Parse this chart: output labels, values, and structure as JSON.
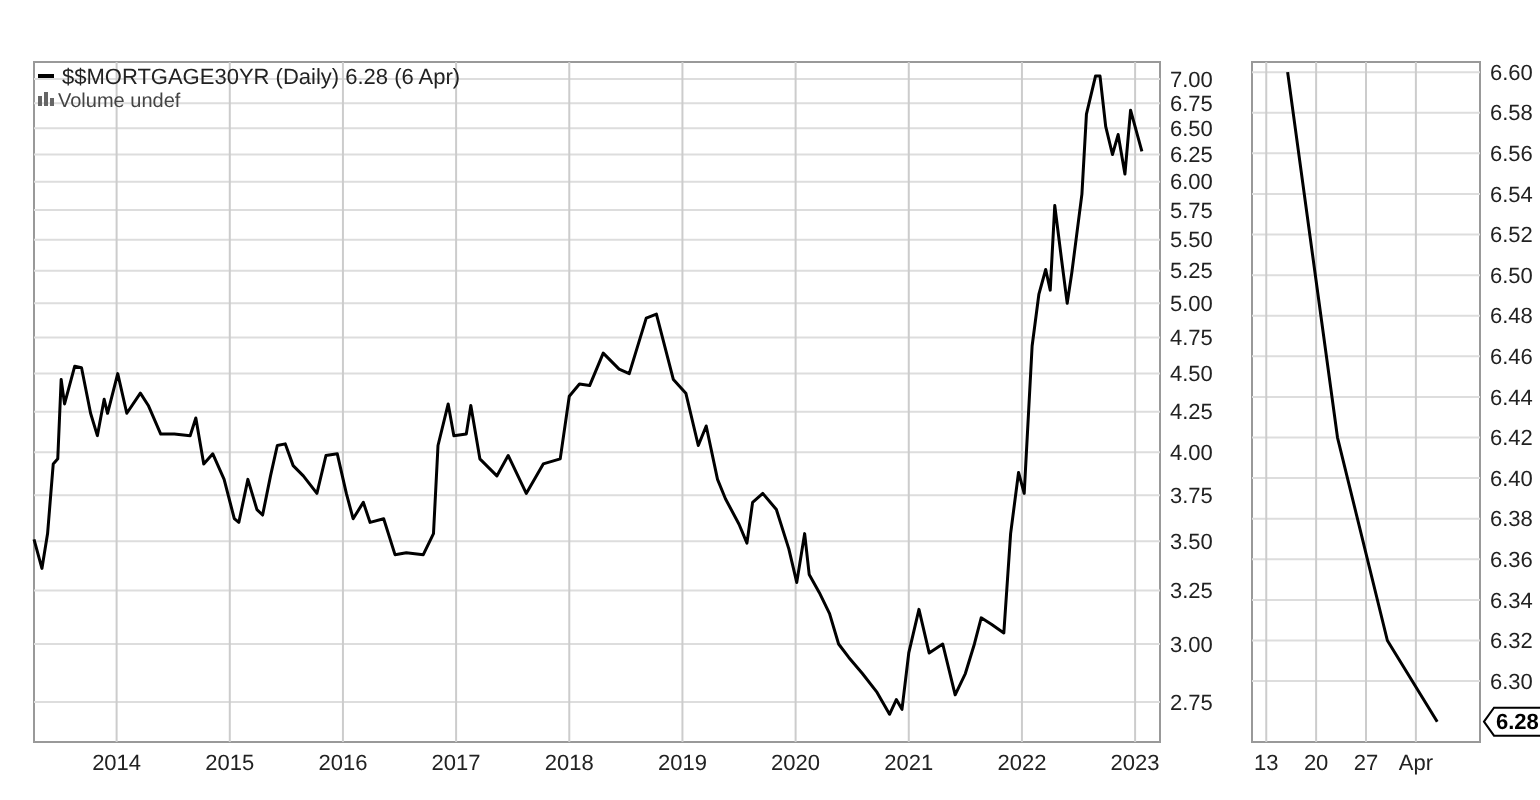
{
  "chart_data": [
    {
      "type": "line",
      "log": true,
      "grid": true,
      "legend": "top left",
      "line_style": "solid",
      "marker": "none",
      "annotations": [
        "Volume undef"
      ],
      "xlim": [
        2013.27,
        2023.22
      ],
      "xticks": [
        2014,
        2015,
        2016,
        2017,
        2018,
        2019,
        2020,
        2021,
        2022,
        2023
      ],
      "ylim": [
        2.59,
        7.18
      ],
      "yticks": [
        {
          "value": 2.75,
          "label": "2.75"
        },
        {
          "value": 3,
          "label": "3.00"
        },
        {
          "value": 3.25,
          "label": "3.25"
        },
        {
          "value": 3.5,
          "label": "3.50"
        },
        {
          "value": 3.75,
          "label": "3.75"
        },
        {
          "value": 4,
          "label": "4.00"
        },
        {
          "value": 4.25,
          "label": "4.25"
        },
        {
          "value": 4.5,
          "label": "4.50"
        },
        {
          "value": 4.75,
          "label": "4.75"
        },
        {
          "value": 5,
          "label": "5.00"
        },
        {
          "value": 5.25,
          "label": "5.25"
        },
        {
          "value": 5.5,
          "label": "5.50"
        },
        {
          "value": 5.75,
          "label": "5.75"
        },
        {
          "value": 6,
          "label": "6.00"
        },
        {
          "value": 6.25,
          "label": "6.25"
        },
        {
          "value": 6.5,
          "label": "6.50"
        },
        {
          "value": 6.75,
          "label": "6.75"
        },
        {
          "value": 7,
          "label": "7.00"
        }
      ],
      "series": [
        {
          "name": "$$MORTGAGE30YR (Daily) 6.28 (6 Apr)",
          "color": "#000000",
          "x": [
            2013.27,
            2013.34,
            2013.39,
            2013.44,
            2013.48,
            2013.51,
            2013.54,
            2013.63,
            2013.69,
            2013.77,
            2013.83,
            2013.89,
            2013.92,
            2014.01,
            2014.09,
            2014.21,
            2014.28,
            2014.39,
            2014.51,
            2014.65,
            2014.7,
            2014.77,
            2014.85,
            2014.95,
            2015.04,
            2015.08,
            2015.16,
            2015.24,
            2015.29,
            2015.36,
            2015.42,
            2015.49,
            2015.56,
            2015.65,
            2015.77,
            2015.85,
            2015.95,
            2016.03,
            2016.09,
            2016.18,
            2016.24,
            2016.36,
            2016.46,
            2016.56,
            2016.71,
            2016.8,
            2016.84,
            2016.93,
            2016.98,
            2017.09,
            2017.13,
            2017.21,
            2017.36,
            2017.46,
            2017.62,
            2017.77,
            2017.92,
            2018.0,
            2018.09,
            2018.18,
            2018.3,
            2018.44,
            2018.53,
            2018.68,
            2018.77,
            2018.92,
            2019.03,
            2019.14,
            2019.21,
            2019.31,
            2019.38,
            2019.5,
            2019.57,
            2019.62,
            2019.71,
            2019.83,
            2019.94,
            2020.01,
            2020.08,
            2020.12,
            2020.21,
            2020.3,
            2020.38,
            2020.47,
            2020.59,
            2020.72,
            2020.83,
            2020.89,
            2020.94,
            2021.0,
            2021.09,
            2021.18,
            2021.3,
            2021.41,
            2021.5,
            2021.58,
            2021.64,
            2021.73,
            2021.84,
            2021.9,
            2021.97,
            2022.02,
            2022.09,
            2022.15,
            2022.21,
            2022.25,
            2022.29,
            2022.35,
            2022.4,
            2022.44,
            2022.53,
            2022.57,
            2022.65,
            2022.69,
            2022.74,
            2022.8,
            2022.85,
            2022.91,
            2022.96,
            2023.06
          ],
          "values": [
            3.51,
            3.36,
            3.54,
            3.93,
            3.96,
            4.46,
            4.3,
            4.55,
            4.54,
            4.24,
            4.1,
            4.33,
            4.24,
            4.5,
            4.24,
            4.37,
            4.29,
            4.11,
            4.11,
            4.1,
            4.21,
            3.93,
            3.99,
            3.84,
            3.62,
            3.6,
            3.84,
            3.67,
            3.64,
            3.86,
            4.04,
            4.05,
            3.92,
            3.86,
            3.76,
            3.98,
            3.99,
            3.76,
            3.62,
            3.71,
            3.6,
            3.62,
            3.43,
            3.44,
            3.43,
            3.54,
            4.04,
            4.3,
            4.1,
            4.11,
            4.29,
            3.96,
            3.86,
            3.98,
            3.76,
            3.93,
            3.96,
            4.35,
            4.43,
            4.42,
            4.64,
            4.53,
            4.5,
            4.89,
            4.92,
            4.46,
            4.37,
            4.04,
            4.16,
            3.84,
            3.73,
            3.59,
            3.49,
            3.71,
            3.76,
            3.67,
            3.46,
            3.29,
            3.54,
            3.33,
            3.24,
            3.14,
            3.0,
            2.94,
            2.87,
            2.79,
            2.7,
            2.76,
            2.72,
            2.96,
            3.16,
            2.96,
            3.0,
            2.78,
            2.87,
            3.0,
            3.12,
            3.09,
            3.05,
            3.54,
            3.88,
            3.76,
            4.69,
            5.07,
            5.26,
            5.1,
            5.79,
            5.34,
            5.0,
            5.23,
            5.89,
            6.64,
            7.03,
            7.03,
            6.52,
            6.25,
            6.44,
            6.07,
            6.68,
            6.28
          ]
        }
      ]
    },
    {
      "type": "line",
      "grid": true,
      "line_style": "solid",
      "marker": "none",
      "annotations": [
        {
          "text": "6.28",
          "x": "--04-06",
          "y": 6.28
        }
      ],
      "x": [
        "--03-16",
        "--03-23",
        "--03-30",
        "--04-06"
      ],
      "xlim": [
        "--03-11",
        "--04-12"
      ],
      "xticks": [
        {
          "value": "--03-13",
          "label": "13"
        },
        {
          "value": "--03-20",
          "label": "20"
        },
        {
          "value": "--03-27",
          "label": "27"
        },
        {
          "value": "--04-03",
          "label": "Apr"
        }
      ],
      "ylim": [
        6.27,
        6.605
      ],
      "yticks": [
        {
          "value": 6.3,
          "label": "6.30"
        },
        {
          "value": 6.32,
          "label": "6.32"
        },
        {
          "value": 6.34,
          "label": "6.34"
        },
        {
          "value": 6.36,
          "label": "6.36"
        },
        {
          "value": 6.38,
          "label": "6.38"
        },
        {
          "value": 6.4,
          "label": "6.40"
        },
        {
          "value": 6.42,
          "label": "6.42"
        },
        {
          "value": 6.44,
          "label": "6.44"
        },
        {
          "value": 6.46,
          "label": "6.46"
        },
        {
          "value": 6.48,
          "label": "6.48"
        },
        {
          "value": 6.5,
          "label": "6.50"
        },
        {
          "value": 6.52,
          "label": "6.52"
        },
        {
          "value": 6.54,
          "label": "6.54"
        },
        {
          "value": 6.56,
          "label": "6.56"
        },
        {
          "value": 6.58,
          "label": "6.58"
        },
        {
          "value": 6.6,
          "label": "6.60"
        }
      ],
      "series": [
        {
          "color": "#000000",
          "values": [
            6.6,
            6.42,
            6.32,
            6.28
          ]
        }
      ]
    }
  ]
}
